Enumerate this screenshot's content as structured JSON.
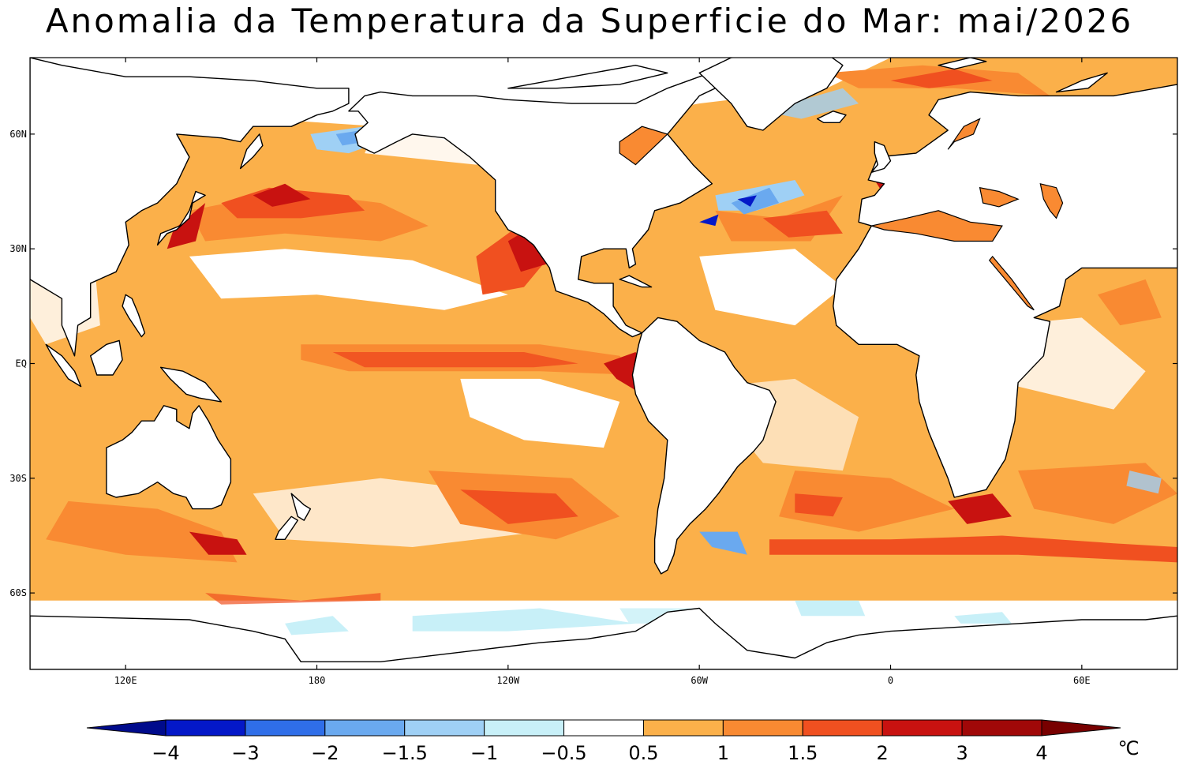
{
  "title": "Anomalia da Temperatura da Superficie do Mar: mai/2026",
  "map": {
    "lon_range": [
      90,
      450
    ],
    "lat_range": [
      -80,
      80
    ],
    "lat_ticks": [
      {
        "lat": 60,
        "label": "60N"
      },
      {
        "lat": 30,
        "label": "30N"
      },
      {
        "lat": 0,
        "label": "EQ"
      },
      {
        "lat": -30,
        "label": "30S"
      },
      {
        "lat": -60,
        "label": "60S"
      }
    ],
    "lon_ticks": [
      {
        "lon": 120,
        "label": "120E"
      },
      {
        "lon": 180,
        "label": "180"
      },
      {
        "lon": 240,
        "label": "120W"
      },
      {
        "lon": 300,
        "label": "60W"
      },
      {
        "lon": 360,
        "label": "0"
      },
      {
        "lon": 420,
        "label": "60E"
      }
    ],
    "colors": {
      "ocean_neutral": "#ffffff",
      "land": "#ffffff",
      "coast": "#000000"
    }
  },
  "colorbar": {
    "unit": "℃",
    "labels": [
      "−4",
      "−3",
      "−2",
      "−1.5",
      "−1",
      "−0.5",
      "0.5",
      "1",
      "1.5",
      "2",
      "3",
      "4"
    ],
    "colors": [
      "#000b8c",
      "#0418c8",
      "#2f6ee8",
      "#6aa9ef",
      "#9fd0f5",
      "#c8f0f8",
      "#ffffff",
      "#fbb04a",
      "#f98a32",
      "#f05020",
      "#c81210",
      "#a00808",
      "#780000"
    ]
  }
}
